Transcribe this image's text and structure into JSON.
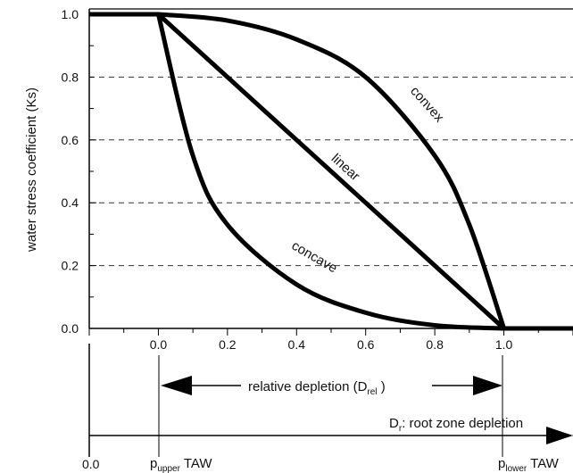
{
  "chart_data": {
    "type": "line",
    "ylabel": "water stress coefficient (Ks)",
    "ylim": [
      0,
      1.0
    ],
    "xlim": [
      -0.2,
      1.2
    ],
    "y_ticks": [
      "0.0",
      "0.2",
      "0.4",
      "0.6",
      "0.8",
      "1.0"
    ],
    "x_ticks": [
      "0.0",
      "0.2",
      "0.4",
      "0.6",
      "0.8",
      "1.0"
    ],
    "grid": "horizontal dashed",
    "series": [
      {
        "name": "convex",
        "x": [
          0.0,
          0.2,
          0.4,
          0.6,
          0.8,
          0.9,
          1.0
        ],
        "y": [
          1.0,
          0.98,
          0.92,
          0.8,
          0.55,
          0.33,
          0.0
        ]
      },
      {
        "name": "linear",
        "x": [
          0.0,
          0.2,
          0.4,
          0.6,
          0.8,
          1.0
        ],
        "y": [
          1.0,
          0.8,
          0.6,
          0.4,
          0.2,
          0.0
        ]
      },
      {
        "name": "concave",
        "x": [
          0.0,
          0.1,
          0.2,
          0.4,
          0.6,
          0.8,
          1.0
        ],
        "y": [
          1.0,
          0.55,
          0.33,
          0.14,
          0.05,
          0.01,
          0.0
        ]
      },
      {
        "name": "",
        "x": [
          -0.2,
          0.0
        ],
        "y": [
          1.0,
          1.0
        ]
      },
      {
        "name": "",
        "x": [
          1.0,
          1.2
        ],
        "y": [
          0.0,
          0.0
        ]
      }
    ],
    "annotations": {
      "relative_depletion": "relative depletion (D",
      "relative_depletion_sub": "rel",
      "relative_depletion_close": " )",
      "root_zone_prefix": "D",
      "root_zone_sub": "r",
      "root_zone_text": ": root zone depletion",
      "bottom_zero": "0.0",
      "p_upper_p": "p",
      "p_upper_sub": "upper",
      "p_upper_taw": " TAW",
      "p_lower_p": "p",
      "p_lower_sub": "lower",
      "p_lower_taw": " TAW"
    },
    "colors": {
      "line": "#000000",
      "grid": "#333333"
    }
  }
}
